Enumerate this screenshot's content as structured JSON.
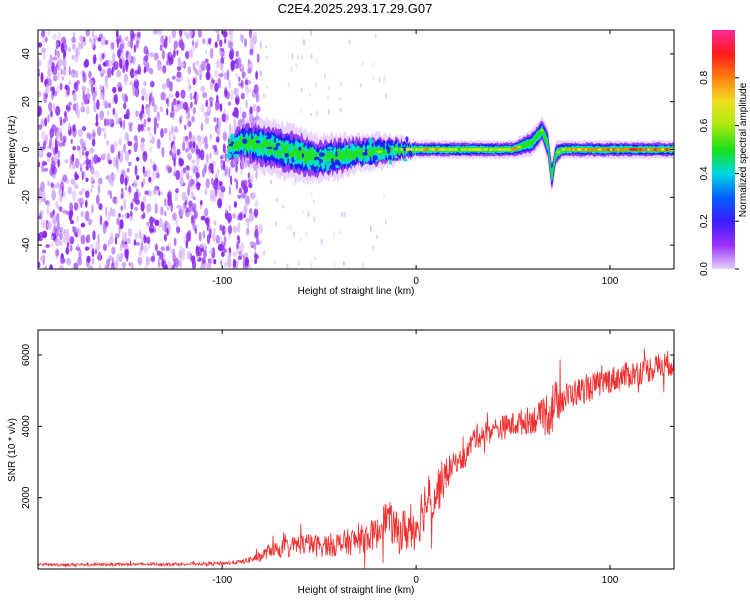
{
  "title": "C2E4.2025.293.17.29.G07",
  "colors": {
    "snr_line": "#f03030",
    "purple": "#8c28f0",
    "light_purple": "#d8b4f8",
    "blue": "#1e1eff",
    "cyan": "#00e0d0",
    "green": "#22e022",
    "yellow": "#f0e020",
    "red": "#ff2020"
  },
  "chart_data": [
    {
      "type": "heatmap",
      "title": "",
      "xlabel": "Height of straight line (km)",
      "ylabel": "Frequency (Hz)",
      "xlim": [
        -195,
        133
      ],
      "ylim": [
        -50,
        50
      ],
      "x_ticks": [
        "-100",
        "0",
        "100"
      ],
      "y_ticks": [
        "40",
        "20",
        "0",
        "-20",
        "-40"
      ],
      "colorbar": {
        "label": "Normalized spectral amplitude",
        "range": [
          0,
          1
        ],
        "ticks": [
          "0.0",
          "0.2",
          "0.4",
          "0.6",
          "0.8"
        ],
        "colormap": [
          "#e6d0fa",
          "#9b30ff",
          "#3a1cff",
          "#0060ff",
          "#00d8e0",
          "#18e018",
          "#a8e810",
          "#f0e020",
          "#ff8010",
          "#ff1a1a",
          "#ff2a9a"
        ]
      },
      "signal_trace": {
        "x": [
          -97,
          -90,
          -80,
          -70,
          -60,
          -50,
          -40,
          -30,
          -20,
          -10,
          0,
          10,
          20,
          30,
          40,
          50,
          60,
          65,
          68,
          70,
          72,
          75,
          80,
          90,
          100,
          110,
          120,
          133
        ],
        "center_hz": [
          1,
          3,
          2,
          0,
          -2,
          -4,
          -3,
          -1,
          -1,
          0,
          0,
          0,
          0,
          0,
          0,
          0,
          3,
          8,
          2,
          -12,
          -2,
          0,
          0,
          0,
          0,
          0,
          0,
          0
        ],
        "halfwidth_hz": [
          3,
          5,
          6,
          6,
          6,
          5,
          5,
          4,
          4,
          3,
          2,
          2,
          2,
          2,
          2,
          2,
          3,
          3,
          4,
          4,
          3,
          2,
          2,
          2,
          2,
          2,
          2,
          2
        ],
        "amplitude": [
          0.3,
          0.4,
          0.35,
          0.35,
          0.4,
          0.4,
          0.45,
          0.45,
          0.5,
          0.55,
          0.6,
          0.7,
          0.65,
          0.6,
          0.6,
          0.65,
          0.6,
          0.5,
          0.4,
          0.35,
          0.4,
          0.6,
          0.7,
          0.75,
          0.8,
          0.85,
          0.85,
          0.8
        ]
      },
      "noise_region_x": [
        -195,
        -80
      ]
    },
    {
      "type": "line",
      "title": "",
      "xlabel": "Height of straight line (km)",
      "ylabel": "SNR (10 * v/v)",
      "xlim": [
        -195,
        133
      ],
      "ylim": [
        0,
        6700
      ],
      "x_ticks": [
        "-100",
        "0",
        "100"
      ],
      "y_ticks": [
        "2000",
        "4000",
        "6000"
      ],
      "series": [
        {
          "name": "SNR",
          "x": [
            -195,
            -150,
            -120,
            -100,
            -90,
            -80,
            -75,
            -70,
            -60,
            -50,
            -40,
            -30,
            -20,
            -15,
            -10,
            0,
            5,
            10,
            15,
            20,
            25,
            30,
            40,
            50,
            60,
            65,
            68,
            70,
            72,
            75,
            80,
            90,
            100,
            110,
            120,
            133
          ],
          "values": [
            120,
            130,
            140,
            160,
            200,
            350,
            550,
            550,
            700,
            650,
            700,
            800,
            1000,
            1500,
            1000,
            1200,
            1900,
            2100,
            2600,
            3000,
            3100,
            3700,
            3900,
            4050,
            4200,
            4250,
            4400,
            4500,
            4700,
            4750,
            4900,
            5100,
            5300,
            5450,
            5600,
            5800
          ],
          "noise_amplitude": [
            40,
            40,
            40,
            50,
            60,
            150,
            200,
            250,
            300,
            320,
            350,
            400,
            450,
            500,
            600,
            700,
            750,
            750,
            500,
            300,
            300,
            350,
            350,
            350,
            400,
            500,
            700,
            800,
            600,
            450,
            400,
            380,
            380,
            380,
            380,
            380
          ]
        }
      ]
    }
  ]
}
